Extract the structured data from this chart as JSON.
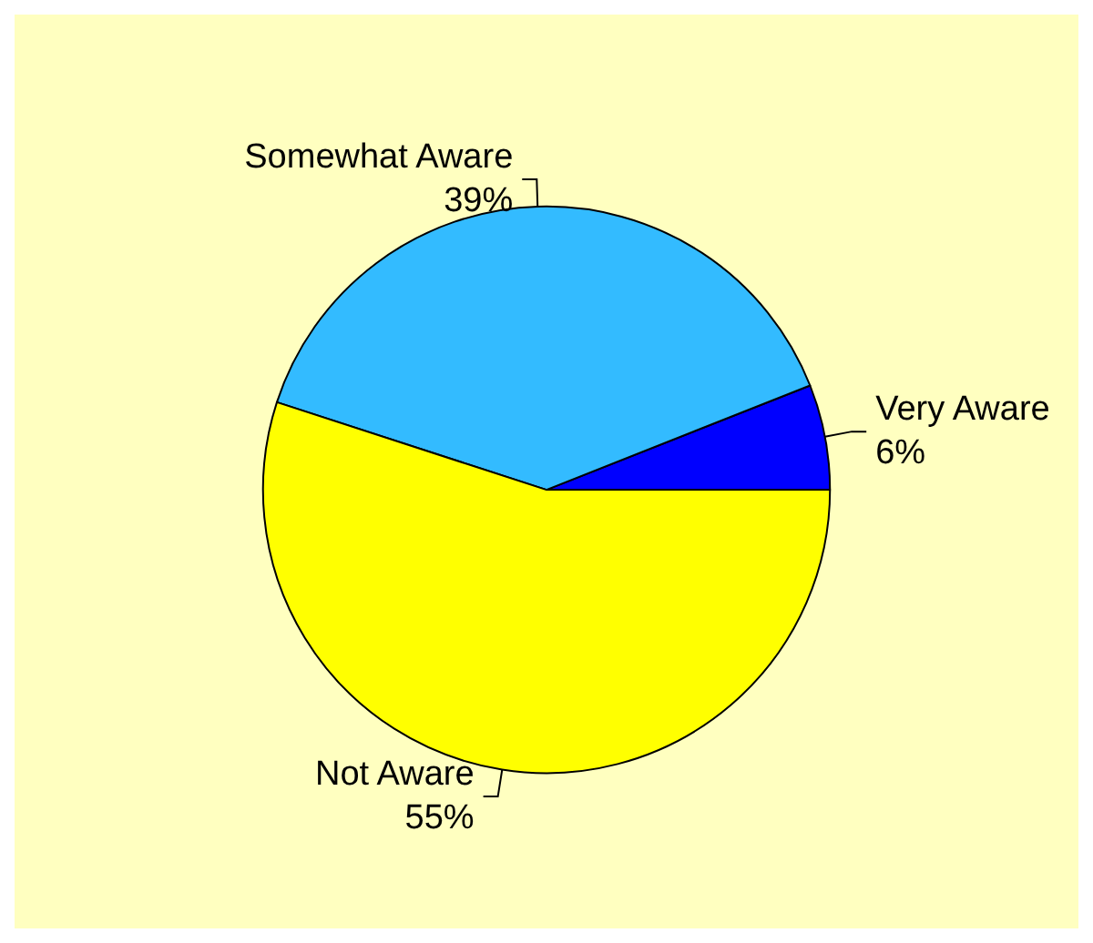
{
  "chart_data": {
    "type": "pie",
    "categories": [
      "Very Aware",
      "Somewhat Aware",
      "Not Aware"
    ],
    "values": [
      6,
      39,
      55
    ],
    "colors": [
      "#0000ff",
      "#33bbff",
      "#ffff00"
    ],
    "value_labels": [
      "6%",
      "39%",
      "55%"
    ]
  }
}
